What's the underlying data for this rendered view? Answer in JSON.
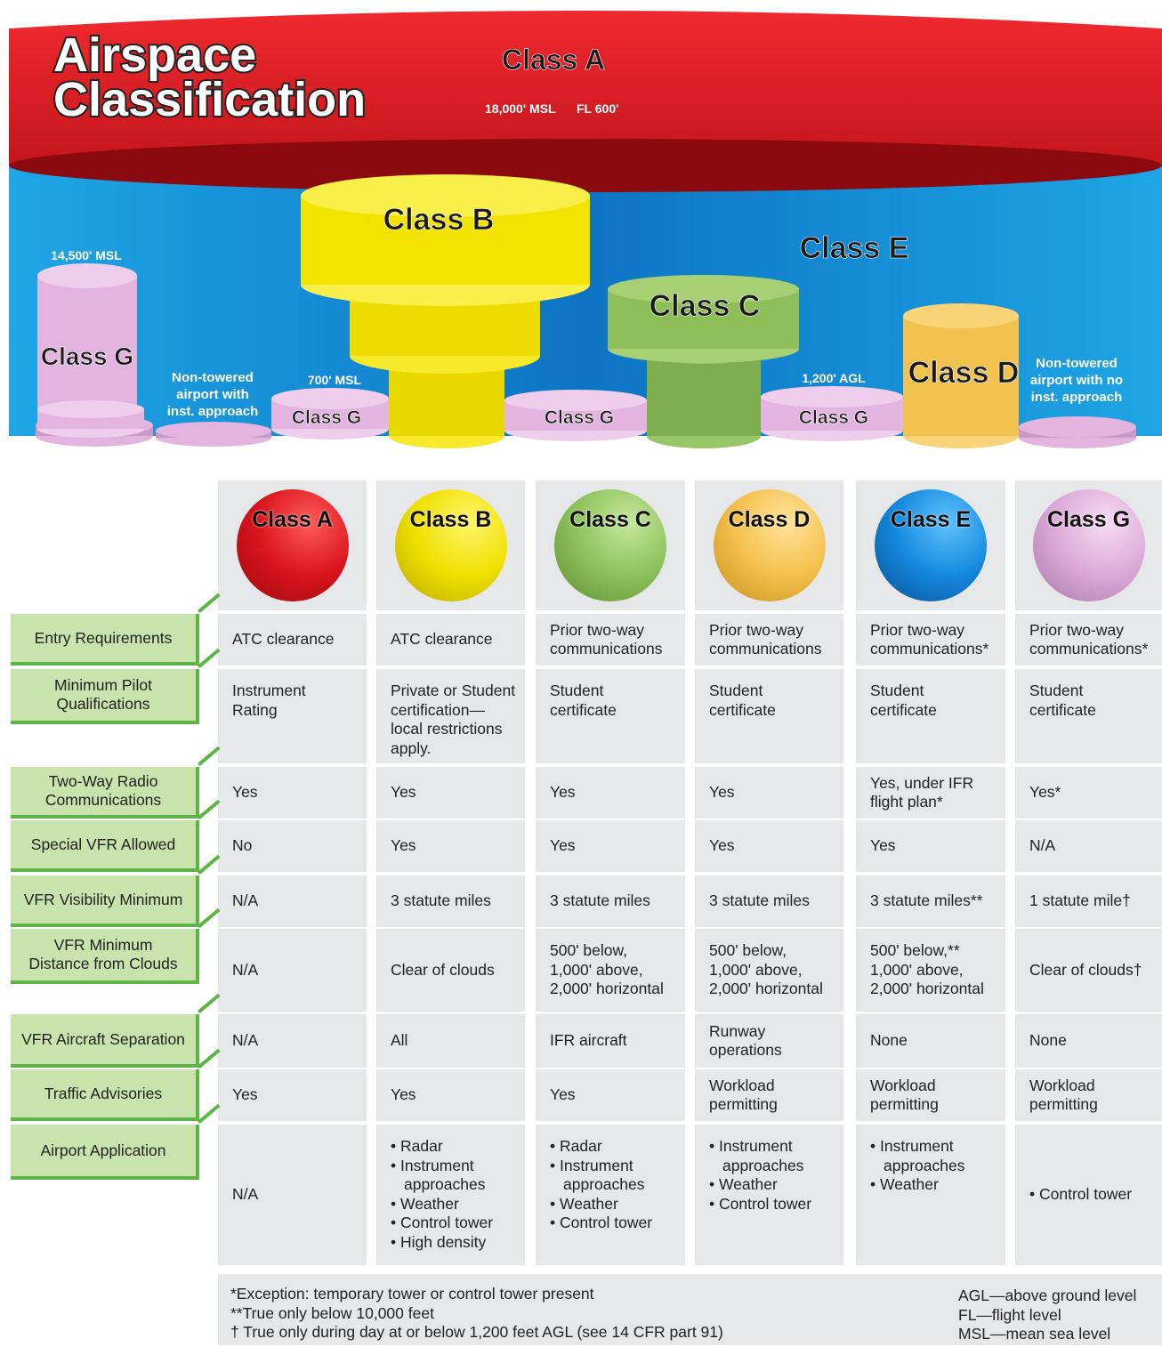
{
  "header": {
    "title_lines": [
      "Airspace",
      "Classification"
    ]
  },
  "diagram": {
    "class_a": {
      "label": "Class A",
      "floor": "18,000' MSL",
      "ceiling": "FL 600'"
    },
    "class_b": "Class B",
    "class_c": "Class C",
    "class_d": "Class D",
    "class_e": "Class E",
    "class_g_labels": [
      "Class G",
      "Class G",
      "Class G",
      "Class G",
      "Class G"
    ],
    "altitudes": [
      "14,500' MSL",
      "700' MSL",
      "1,200' AGL"
    ],
    "airports": [
      [
        "Non-towered",
        "airport with",
        "inst. approach"
      ],
      [
        "Non-towered",
        "airport with no",
        "inst. approach"
      ]
    ]
  },
  "table": {
    "columns": [
      "Class A",
      "Class B",
      "Class C",
      "Class D",
      "Class E",
      "Class G"
    ],
    "rows": [
      {
        "label": [
          "Entry Requirements"
        ],
        "cells": [
          [
            "ATC clearance"
          ],
          [
            "ATC clearance"
          ],
          [
            "Prior two-way",
            "communications"
          ],
          [
            "Prior two-way",
            "communications"
          ],
          [
            "Prior two-way",
            "communications*"
          ],
          [
            "Prior two-way",
            "communications*"
          ]
        ]
      },
      {
        "label": [
          "Minimum Pilot",
          "Qualifications"
        ],
        "cells": [
          [
            "Instrument",
            "Rating"
          ],
          [
            "Private or Student",
            "certification—",
            "local restrictions",
            "apply."
          ],
          [
            "Student",
            "certificate"
          ],
          [
            "Student",
            "certificate"
          ],
          [
            "Student",
            "certificate"
          ],
          [
            "Student",
            "certificate"
          ]
        ]
      },
      {
        "label": [
          "Two-Way Radio",
          "Communications"
        ],
        "cells": [
          [
            "Yes"
          ],
          [
            "Yes"
          ],
          [
            "Yes"
          ],
          [
            "Yes"
          ],
          [
            "Yes, under IFR",
            "flight plan*"
          ],
          [
            "Yes*"
          ]
        ]
      },
      {
        "label": [
          "Special VFR Allowed"
        ],
        "cells": [
          [
            "No"
          ],
          [
            "Yes"
          ],
          [
            "Yes"
          ],
          [
            "Yes"
          ],
          [
            "Yes"
          ],
          [
            "N/A"
          ]
        ]
      },
      {
        "label": [
          "VFR Visibility Minimum"
        ],
        "cells": [
          [
            "N/A"
          ],
          [
            "3 statute miles"
          ],
          [
            "3 statute miles"
          ],
          [
            "3 statute miles"
          ],
          [
            "3 statute miles**"
          ],
          [
            "1 statute mile†"
          ]
        ]
      },
      {
        "label": [
          "VFR Minimum",
          "Distance from Clouds"
        ],
        "cells": [
          [
            "N/A"
          ],
          [
            "Clear of clouds"
          ],
          [
            "500' below,",
            "1,000' above,",
            "2,000' horizontal"
          ],
          [
            "500' below,",
            "1,000' above,",
            "2,000' horizontal"
          ],
          [
            "500' below,**",
            "1,000' above,",
            "2,000' horizontal"
          ],
          [
            "Clear of clouds†"
          ]
        ]
      },
      {
        "label": [
          "VFR Aircraft Separation"
        ],
        "cells": [
          [
            "N/A"
          ],
          [
            "All"
          ],
          [
            "IFR aircraft"
          ],
          [
            "Runway",
            "operations"
          ],
          [
            "None"
          ],
          [
            "None"
          ]
        ]
      },
      {
        "label": [
          "Traffic Advisories"
        ],
        "cells": [
          [
            "Yes"
          ],
          [
            "Yes"
          ],
          [
            "Yes"
          ],
          [
            "Workload",
            "permitting"
          ],
          [
            "Workload",
            "permitting"
          ],
          [
            "Workload",
            "permitting"
          ]
        ]
      },
      {
        "label": [
          "Airport Application"
        ],
        "cells": [
          [
            "N/A"
          ],
          [
            "• Radar",
            "• Instrument",
            "approaches",
            "• Weather",
            "• Control tower",
            "• High density"
          ],
          [
            "• Radar",
            "• Instrument",
            "approaches",
            "• Weather",
            "• Control tower"
          ],
          [
            "• Instrument",
            "approaches",
            "• Weather",
            "• Control tower"
          ],
          [
            "• Instrument",
            "approaches",
            "• Weather"
          ],
          [
            "• Control tower"
          ]
        ]
      }
    ]
  },
  "footnotes": {
    "left": [
      "*Exception: temporary tower or control tower present",
      "**True only below 10,000 feet",
      "† True only during day at or below 1,200 feet AGL (see 14 CFR part 91)"
    ],
    "right": [
      "AGL—above ground level",
      "FL—flight level",
      "MSL—mean sea level"
    ]
  }
}
